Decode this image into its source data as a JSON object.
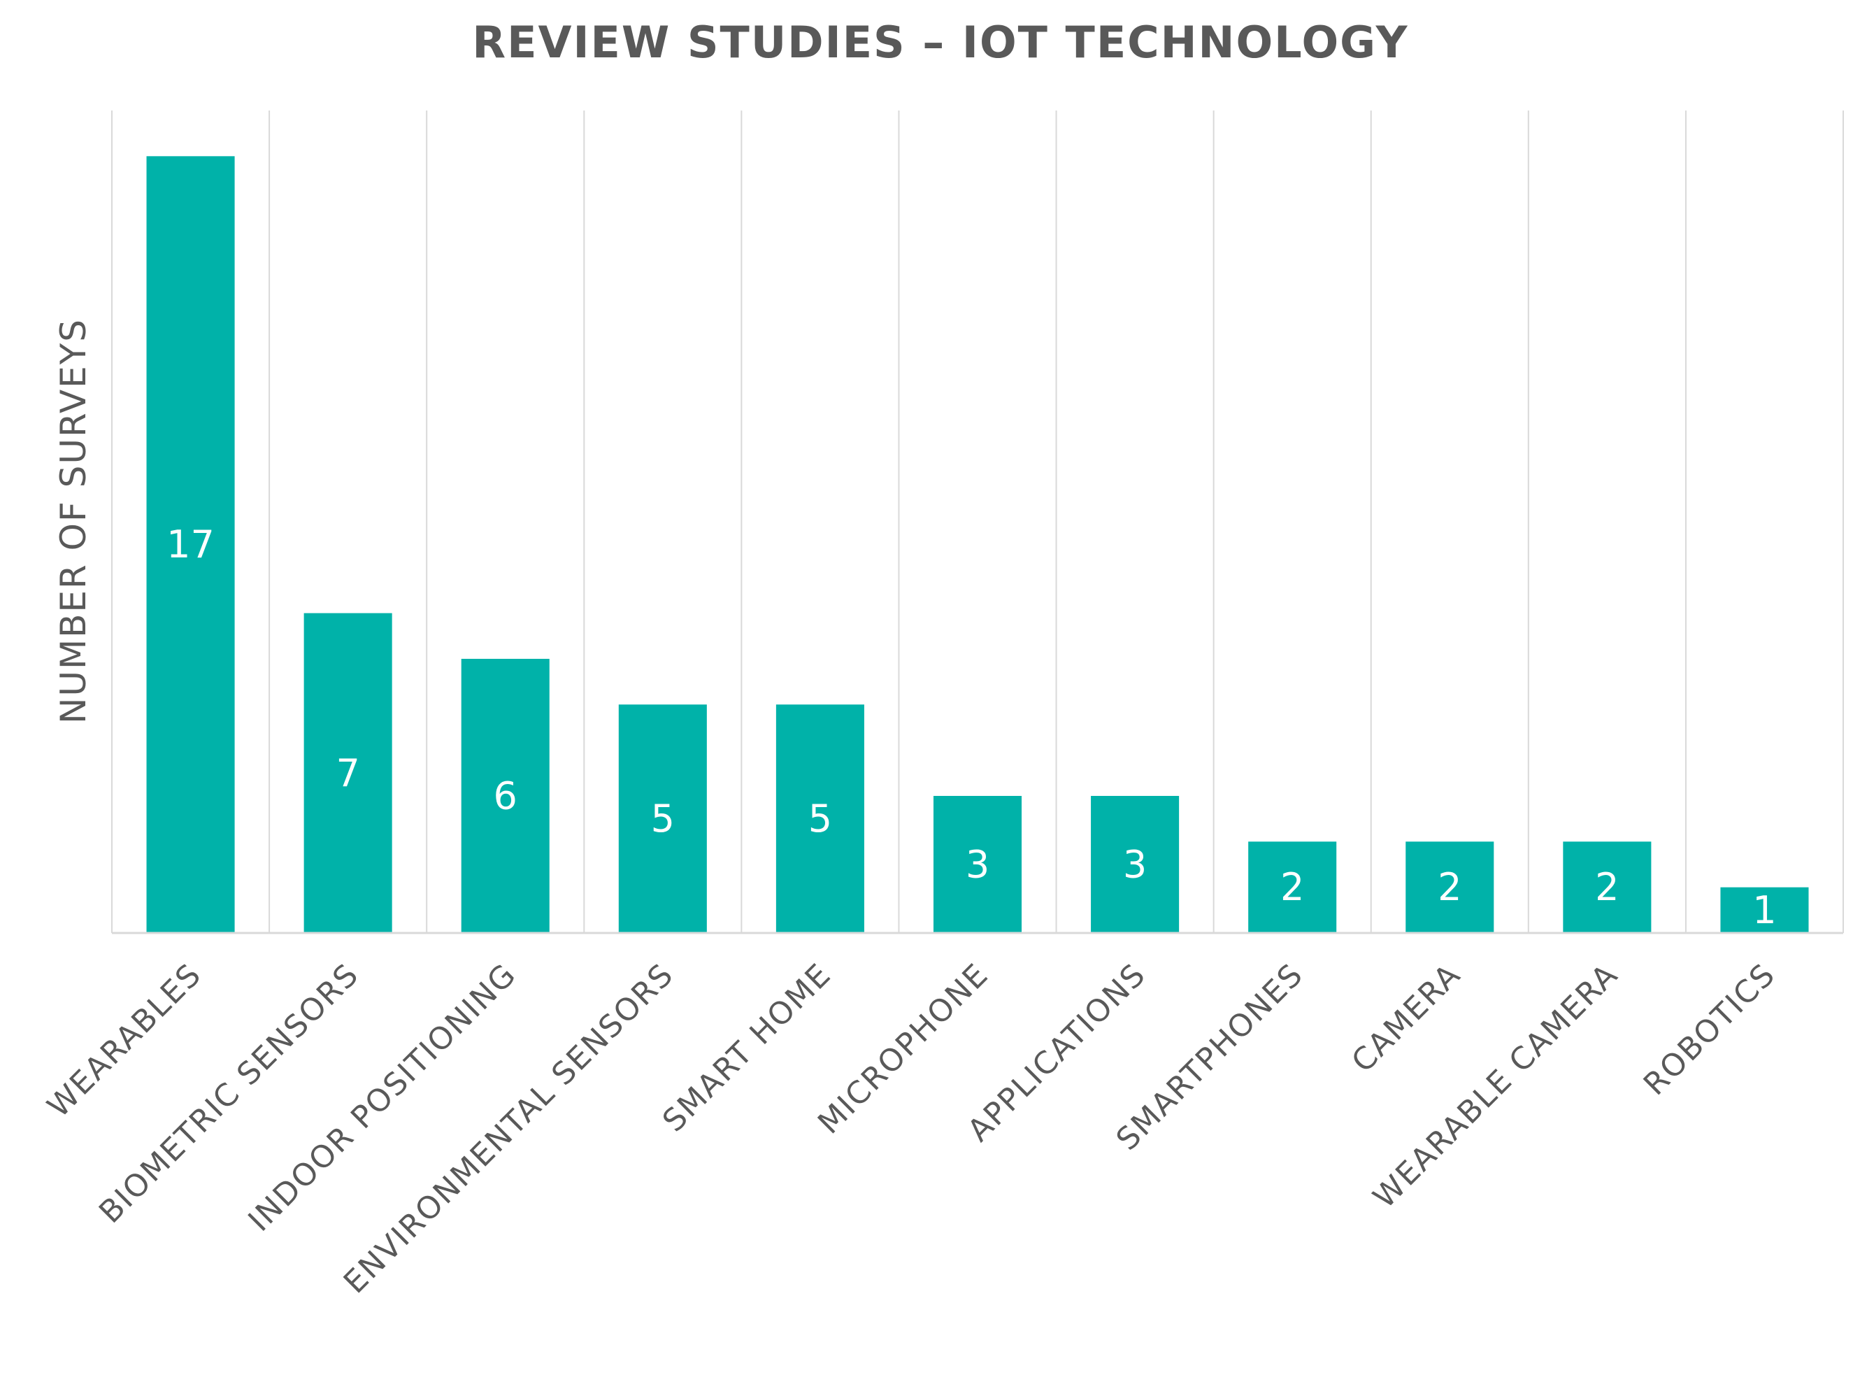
{
  "chart_data": {
    "type": "bar",
    "title": "REVIEW STUDIES – IOT TECHNOLOGY",
    "xlabel": "",
    "ylabel": "NUMBER OF SURVEYS",
    "categories": [
      "WEARABLES",
      "BIOMETRIC SENSORS",
      "INDOOR POSITIONING",
      "ENVIRONMENTAL SENSORS",
      "SMART HOME",
      "MICROPHONE",
      "APPLICATIONS",
      "SMARTPHONES",
      "CAMERA",
      "WEARABLE CAMERA",
      "ROBOTICS"
    ],
    "values": [
      17,
      7,
      6,
      5,
      5,
      3,
      3,
      2,
      2,
      2,
      1
    ],
    "data_labels": [
      "17",
      "7",
      "6",
      "5",
      "5",
      "3",
      "3",
      "2",
      "2",
      "2",
      "1"
    ],
    "ylim": [
      0,
      18
    ],
    "grid": "vertical category separators",
    "legend": "none",
    "bar_color": "#00B2A9"
  }
}
